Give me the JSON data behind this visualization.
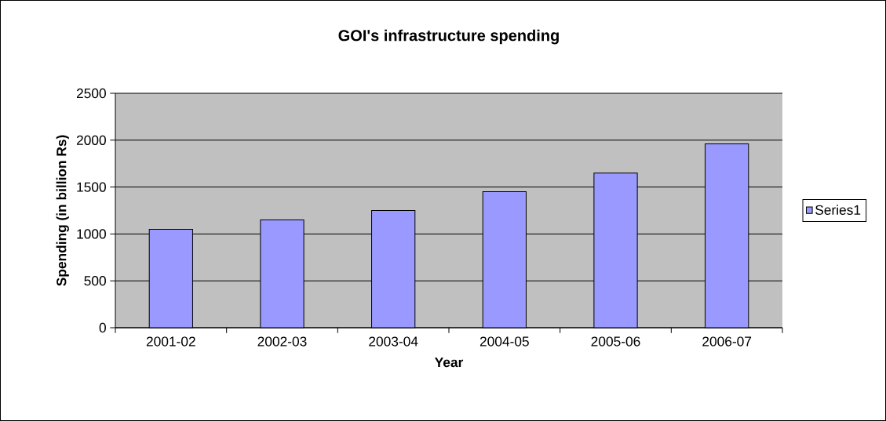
{
  "chart_data": {
    "type": "bar",
    "title": "GOI's infrastructure spending",
    "xlabel": "Year",
    "ylabel": "Spending (in billion Rs)",
    "categories": [
      "2001-02",
      "2002-03",
      "2003-04",
      "2004-05",
      "2005-06",
      "2006-07"
    ],
    "series": [
      {
        "name": "Series1",
        "color": "#9999ff",
        "values": [
          1050,
          1150,
          1250,
          1450,
          1650,
          1960
        ]
      }
    ],
    "ylim": [
      0,
      2500
    ],
    "yticks": [
      0,
      500,
      1000,
      1500,
      2000,
      2500
    ],
    "grid": "y",
    "legend": "right"
  }
}
